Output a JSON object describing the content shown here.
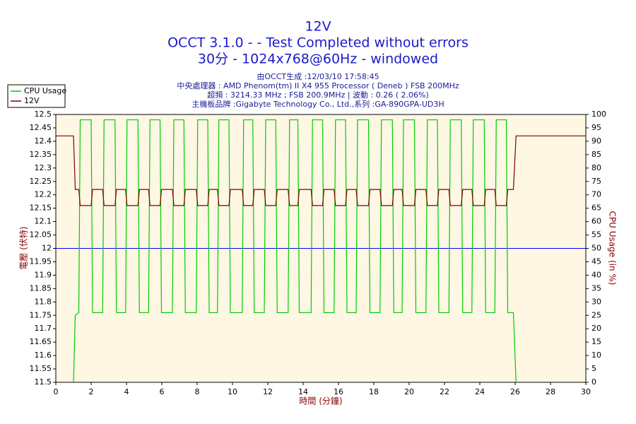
{
  "chart_data": {
    "type": "line",
    "title": [
      "12V",
      "OCCT 3.1.0 -  - Test Completed without errors",
      "30分 - 1024x768@60Hz - windowed"
    ],
    "subtitle": [
      "由OCCT生成 :12/03/10 17:58:45",
      "中央處理器 : AMD Phenom(tm) II X4 955 Processor ( Deneb ) FSB 200MHz",
      "超頻 : 3214.33 MHz ; FSB 200.9MHz | 波動 : 0.26 ( 2.06%)",
      "主機板品牌 :Gigabyte Technology Co., Ltd.,系列 :GA-890GPA-UD3H"
    ],
    "xlabel": "時間 (分鐘)",
    "ylabel": "電壓 (伏特)",
    "y2label": "CPU Usage (in %)",
    "xlim": [
      0,
      30
    ],
    "xticks": [
      0,
      2,
      4,
      6,
      8,
      10,
      12,
      14,
      16,
      18,
      20,
      22,
      24,
      26,
      28,
      30
    ],
    "ylim": [
      11.5,
      12.5
    ],
    "yticks": [
      11.5,
      11.55,
      11.6,
      11.65,
      11.7,
      11.75,
      11.8,
      11.85,
      11.9,
      11.95,
      12,
      12.05,
      12.1,
      12.15,
      12.2,
      12.25,
      12.3,
      12.35,
      12.4,
      12.45,
      12.5
    ],
    "y2lim": [
      0,
      100
    ],
    "y2ticks": [
      0,
      5,
      10,
      15,
      20,
      25,
      30,
      35,
      40,
      45,
      50,
      55,
      60,
      65,
      70,
      75,
      80,
      85,
      90,
      95,
      100
    ],
    "reference_line": {
      "value": 12,
      "color": "#0000ff"
    },
    "legend": "top-left",
    "x": [
      0,
      1.0,
      1.1,
      1.3,
      1.38,
      2.0,
      2.08,
      2.65,
      2.73,
      3.35,
      3.43,
      3.95,
      4.03,
      4.65,
      4.73,
      5.25,
      5.33,
      5.9,
      5.98,
      6.6,
      6.68,
      7.25,
      7.33,
      7.95,
      8.03,
      8.6,
      8.68,
      9.15,
      9.23,
      9.8,
      9.88,
      10.55,
      10.63,
      11.15,
      11.23,
      11.8,
      11.88,
      12.45,
      12.53,
      13.15,
      13.23,
      13.7,
      13.78,
      14.45,
      14.53,
      15.1,
      15.18,
      15.75,
      15.83,
      16.4,
      16.48,
      17.0,
      17.08,
      17.7,
      17.78,
      18.35,
      18.43,
      19.05,
      19.13,
      19.6,
      19.68,
      20.3,
      20.38,
      20.95,
      21.03,
      21.6,
      21.68,
      22.25,
      22.33,
      22.95,
      23.03,
      23.55,
      23.63,
      24.25,
      24.33,
      24.85,
      24.93,
      25.5,
      25.58,
      25.9,
      26.05,
      26.2,
      30
    ],
    "series": [
      {
        "name": "CPU Usage",
        "color": "#00cc00",
        "axis": "y2",
        "values": [
          null,
          0,
          25,
          26,
          98,
          98,
          26,
          26,
          98,
          98,
          26,
          26,
          98,
          98,
          26,
          26,
          98,
          98,
          26,
          26,
          98,
          98,
          26,
          26,
          98,
          98,
          26,
          26,
          98,
          98,
          26,
          26,
          98,
          98,
          26,
          26,
          98,
          98,
          26,
          26,
          98,
          98,
          26,
          26,
          98,
          98,
          26,
          26,
          98,
          98,
          26,
          26,
          98,
          98,
          26,
          26,
          98,
          98,
          26,
          26,
          98,
          98,
          26,
          26,
          98,
          98,
          26,
          26,
          98,
          98,
          26,
          26,
          98,
          98,
          26,
          26,
          98,
          98,
          26,
          26,
          0,
          null,
          null
        ]
      },
      {
        "name": "12V",
        "color": "#800000",
        "values": [
          12.42,
          12.42,
          12.22,
          12.22,
          12.16,
          12.16,
          12.22,
          12.22,
          12.16,
          12.16,
          12.22,
          12.22,
          12.16,
          12.16,
          12.22,
          12.22,
          12.16,
          12.16,
          12.22,
          12.22,
          12.16,
          12.16,
          12.22,
          12.22,
          12.16,
          12.16,
          12.22,
          12.22,
          12.16,
          12.16,
          12.22,
          12.22,
          12.16,
          12.16,
          12.22,
          12.22,
          12.16,
          12.16,
          12.22,
          12.22,
          12.16,
          12.16,
          12.22,
          12.22,
          12.16,
          12.16,
          12.22,
          12.22,
          12.16,
          12.16,
          12.22,
          12.22,
          12.16,
          12.16,
          12.22,
          12.22,
          12.16,
          12.16,
          12.22,
          12.22,
          12.16,
          12.16,
          12.22,
          12.22,
          12.16,
          12.16,
          12.22,
          12.22,
          12.16,
          12.16,
          12.22,
          12.22,
          12.16,
          12.16,
          12.22,
          12.22,
          12.16,
          12.16,
          12.22,
          12.22,
          12.42,
          12.42,
          12.42
        ]
      }
    ]
  }
}
